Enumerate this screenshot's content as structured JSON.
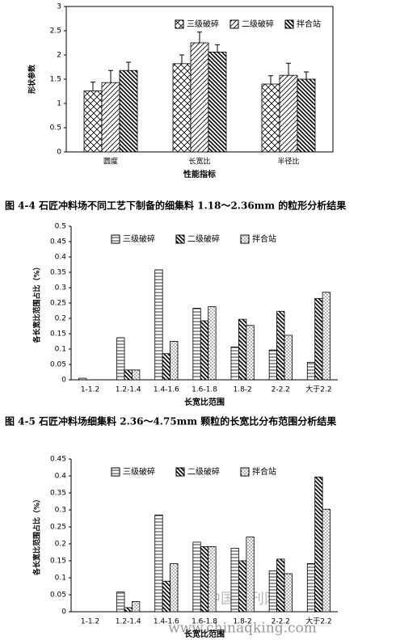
{
  "chart_data": [
    {
      "type": "bar",
      "y_label": "形状参数",
      "x_label": "性能指标",
      "caption": "图 4-4 石匠冲料场不同工艺下制备的细集料 1.18～2.36mm 的粒形分析结果",
      "categories": [
        "圆度",
        "长宽比",
        "半径比"
      ],
      "series": [
        {
          "name": "三级破碎",
          "color": "#000000",
          "pattern": "crosshatch",
          "values": [
            1.26,
            1.82,
            1.4
          ],
          "errors": [
            0.18,
            0.18,
            0.17
          ]
        },
        {
          "name": "二级破碎",
          "color": "#000000",
          "pattern": "diagonal",
          "values": [
            1.43,
            2.25,
            1.58
          ],
          "errors": [
            0.25,
            0.22,
            0.25
          ]
        },
        {
          "name": "拌合站",
          "color": "#000000",
          "pattern": "thick-diagonal",
          "values": [
            1.68,
            2.06,
            1.5
          ],
          "errors": [
            0.17,
            0.15,
            0.15
          ]
        }
      ],
      "ylim": [
        0,
        3
      ],
      "yticks": [
        0,
        0.5,
        1,
        1.5,
        2,
        2.5,
        3
      ],
      "legend": "upper right"
    },
    {
      "type": "bar",
      "y_label": "各长宽比范围占比（%）",
      "x_label": "长宽比范围",
      "caption": "图 4-5 石匠冲料场细集料 2.36～4.75mm 颗粒的长宽比分布范围分析结果",
      "categories": [
        "1-1.2",
        "1.2-1.4",
        "1.4-1.6",
        "1.6-1.8",
        "1.8-2",
        "2-2.2",
        "大于2.2"
      ],
      "series": [
        {
          "name": "三级破碎",
          "color": "#000000",
          "pattern": "horizontal",
          "values": [
            0.005,
            0.137,
            0.358,
            0.233,
            0.107,
            0.097,
            0.057
          ]
        },
        {
          "name": "二级破碎",
          "color": "#000000",
          "pattern": "thick-diagonal",
          "values": [
            0,
            0.032,
            0.085,
            0.192,
            0.197,
            0.223,
            0.265
          ]
        },
        {
          "name": "拌合站",
          "color": "#000000",
          "pattern": "dots",
          "values": [
            0,
            0.032,
            0.125,
            0.238,
            0.177,
            0.145,
            0.285
          ]
        }
      ],
      "ylim": [
        0,
        0.5
      ],
      "yticks": [
        0,
        0.05,
        0.1,
        0.15,
        0.2,
        0.25,
        0.3,
        0.35,
        0.4,
        0.45,
        0.5
      ],
      "legend": "upper center"
    },
    {
      "type": "bar",
      "y_label": "各长宽比范围占比（%）",
      "x_label": "长宽比范围",
      "categories": [
        "1-1.2",
        "1.2-1.4",
        "1.4-1.6",
        "1.6-1.8",
        "1.8-2",
        "2-2.2",
        "大于2.2"
      ],
      "series": [
        {
          "name": "三级破碎",
          "color": "#000000",
          "pattern": "horizontal",
          "values": [
            0,
            0.058,
            0.285,
            0.205,
            0.187,
            0.12,
            0.142
          ]
        },
        {
          "name": "二级破碎",
          "color": "#000000",
          "pattern": "thick-diagonal",
          "values": [
            0,
            0.012,
            0.09,
            0.192,
            0.15,
            0.155,
            0.397
          ]
        },
        {
          "name": "拌合站",
          "color": "#000000",
          "pattern": "dots",
          "values": [
            0,
            0.03,
            0.142,
            0.192,
            0.22,
            0.112,
            0.302
          ]
        }
      ],
      "ylim": [
        0,
        0.45
      ],
      "yticks": [
        0,
        0.05,
        0.1,
        0.15,
        0.2,
        0.25,
        0.3,
        0.35,
        0.4,
        0.45
      ],
      "legend": "upper center"
    }
  ],
  "watermark": [
    "中国期刊网",
    "www.chinaqking.com"
  ]
}
